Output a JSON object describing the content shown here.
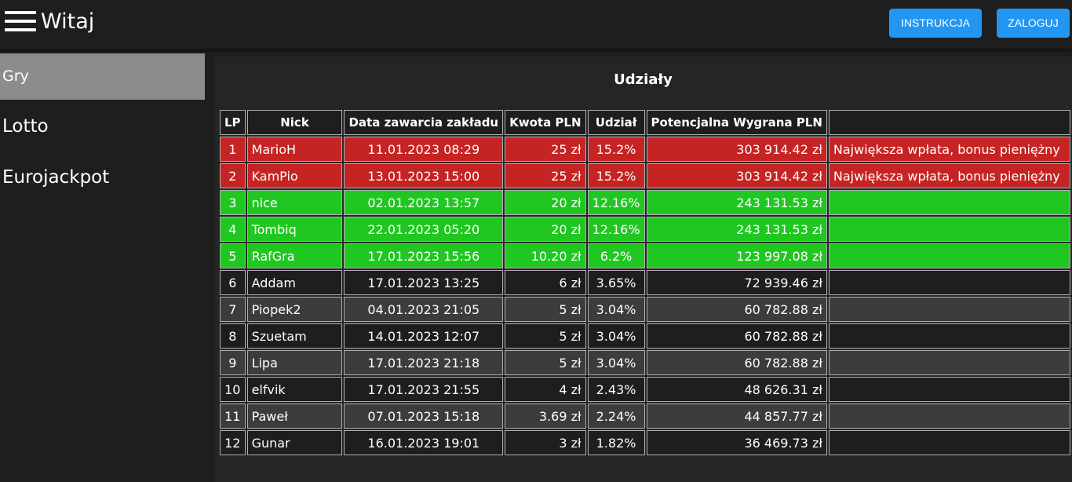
{
  "header": {
    "title": "Witaj",
    "instruction_label": "INSTRUKCJA",
    "login_label": "ZALOGUJ"
  },
  "sidebar": {
    "section_label": "Gry",
    "items": [
      {
        "label": "Lotto"
      },
      {
        "label": "Eurojackpot"
      }
    ]
  },
  "main": {
    "title": "Udziały"
  },
  "colors": {
    "accent": "#2196f3",
    "row_red": "#c62323",
    "row_green": "#21c721",
    "row_dark": "#1e1e1e",
    "row_grey": "#3c3c3c"
  },
  "table": {
    "headers": [
      "LP",
      "Nick",
      "Data zawarcia zakładu",
      "Kwota PLN",
      "Udział",
      "Potencjalna Wygrana PLN",
      ""
    ],
    "rows": [
      {
        "lp": "1",
        "nick": "MarioH",
        "date": "11.01.2023 08:29",
        "amount": "25 zł",
        "share": "15.2%",
        "win": "303 914.42 zł",
        "note": "Największa wpłata, bonus pieniężny",
        "style": "red"
      },
      {
        "lp": "2",
        "nick": "KamPio",
        "date": "13.01.2023 15:00",
        "amount": "25 zł",
        "share": "15.2%",
        "win": "303 914.42 zł",
        "note": "Największa wpłata, bonus pieniężny",
        "style": "red"
      },
      {
        "lp": "3",
        "nick": "nice",
        "date": "02.01.2023 13:57",
        "amount": "20 zł",
        "share": "12.16%",
        "win": "243 131.53 zł",
        "note": "",
        "style": "green"
      },
      {
        "lp": "4",
        "nick": "Tombiq",
        "date": "22.01.2023 05:20",
        "amount": "20 zł",
        "share": "12.16%",
        "win": "243 131.53 zł",
        "note": "",
        "style": "green"
      },
      {
        "lp": "5",
        "nick": "RafGra",
        "date": "17.01.2023 15:56",
        "amount": "10.20 zł",
        "share": "6.2%",
        "win": "123 997.08 zł",
        "note": "",
        "style": "green"
      },
      {
        "lp": "6",
        "nick": "Addam",
        "date": "17.01.2023 13:25",
        "amount": "6 zł",
        "share": "3.65%",
        "win": "72 939.46 zł",
        "note": "",
        "style": "dark"
      },
      {
        "lp": "7",
        "nick": "Piopek2",
        "date": "04.01.2023 21:05",
        "amount": "5 zł",
        "share": "3.04%",
        "win": "60 782.88 zł",
        "note": "",
        "style": "grey"
      },
      {
        "lp": "8",
        "nick": "Szuetam",
        "date": "14.01.2023 12:07",
        "amount": "5 zł",
        "share": "3.04%",
        "win": "60 782.88 zł",
        "note": "",
        "style": "dark"
      },
      {
        "lp": "9",
        "nick": "Lipa",
        "date": "17.01.2023 21:18",
        "amount": "5 zł",
        "share": "3.04%",
        "win": "60 782.88 zł",
        "note": "",
        "style": "grey"
      },
      {
        "lp": "10",
        "nick": "elfvik",
        "date": "17.01.2023 21:55",
        "amount": "4 zł",
        "share": "2.43%",
        "win": "48 626.31 zł",
        "note": "",
        "style": "dark"
      },
      {
        "lp": "11",
        "nick": "Paweł",
        "date": "07.01.2023 15:18",
        "amount": "3.69 zł",
        "share": "2.24%",
        "win": "44 857.77 zł",
        "note": "",
        "style": "grey"
      },
      {
        "lp": "12",
        "nick": "Gunar",
        "date": "16.01.2023 19:01",
        "amount": "3 zł",
        "share": "1.82%",
        "win": "36 469.73 zł",
        "note": "",
        "style": "dark"
      }
    ]
  }
}
